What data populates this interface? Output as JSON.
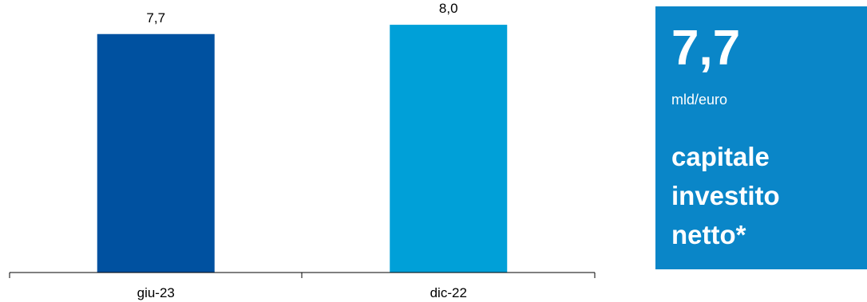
{
  "chart_data": {
    "type": "bar",
    "categories": [
      "giu-23",
      "dic-22"
    ],
    "values": [
      7.7,
      8.0
    ],
    "value_labels": [
      "7,7",
      "8,0"
    ],
    "colors": [
      "#0051a0",
      "#00a0d8"
    ],
    "ylim": [
      0,
      8.8
    ],
    "grid": false,
    "title": "",
    "xlabel": "",
    "ylabel": ""
  },
  "kpi": {
    "value": "7,7",
    "unit": "mld/euro",
    "label": "capitale\ninvestito\nnetto*",
    "background": "#0a86c8"
  }
}
